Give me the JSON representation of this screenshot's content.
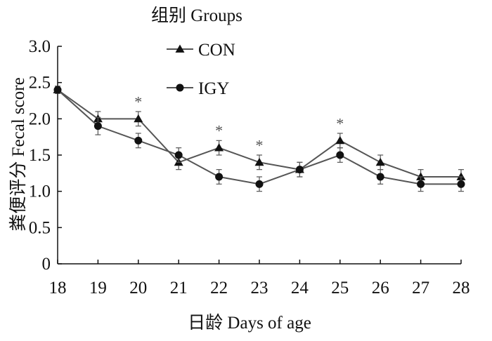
{
  "chart_data": {
    "type": "line",
    "xlabel": "日龄  Days of age",
    "ylabel": "粪便评分  Fecal score",
    "legend_title": "组别 Groups",
    "legend_position": "top-center",
    "x": [
      18,
      19,
      20,
      21,
      22,
      23,
      24,
      25,
      26,
      27,
      28
    ],
    "x_ticks": [
      "18",
      "19",
      "20",
      "21",
      "22",
      "23",
      "24",
      "25",
      "26",
      "27",
      "28"
    ],
    "y_ticks": [
      "0",
      "0.5",
      "1.0",
      "1.5",
      "2.0",
      "2.5",
      "3.0"
    ],
    "xlim": [
      18,
      28
    ],
    "ylim": [
      0,
      3.0
    ],
    "grid": false,
    "series": [
      {
        "name": "CON",
        "marker": "triangle",
        "values": [
          2.4,
          2.0,
          2.0,
          1.4,
          1.6,
          1.4,
          1.3,
          1.7,
          1.4,
          1.2,
          1.2
        ],
        "error": [
          0.05,
          0.1,
          0.1,
          0.1,
          0.1,
          0.1,
          0.1,
          0.1,
          0.1,
          0.1,
          0.1
        ]
      },
      {
        "name": "IGY",
        "marker": "circle",
        "values": [
          2.4,
          1.9,
          1.7,
          1.5,
          1.2,
          1.1,
          1.3,
          1.5,
          1.2,
          1.1,
          1.1
        ],
        "error": [
          0.05,
          0.12,
          0.1,
          0.1,
          0.1,
          0.1,
          0.1,
          0.1,
          0.1,
          0.1,
          0.1
        ]
      }
    ],
    "significance_marks": [
      {
        "x": 20,
        "y": 2.28,
        "text": "*"
      },
      {
        "x": 22,
        "y": 1.88,
        "text": "*"
      },
      {
        "x": 23,
        "y": 1.68,
        "text": "*"
      },
      {
        "x": 25,
        "y": 1.98,
        "text": "*"
      }
    ],
    "colors": {
      "line": "#555555",
      "marker": "#111111",
      "axis": "#111111"
    }
  }
}
